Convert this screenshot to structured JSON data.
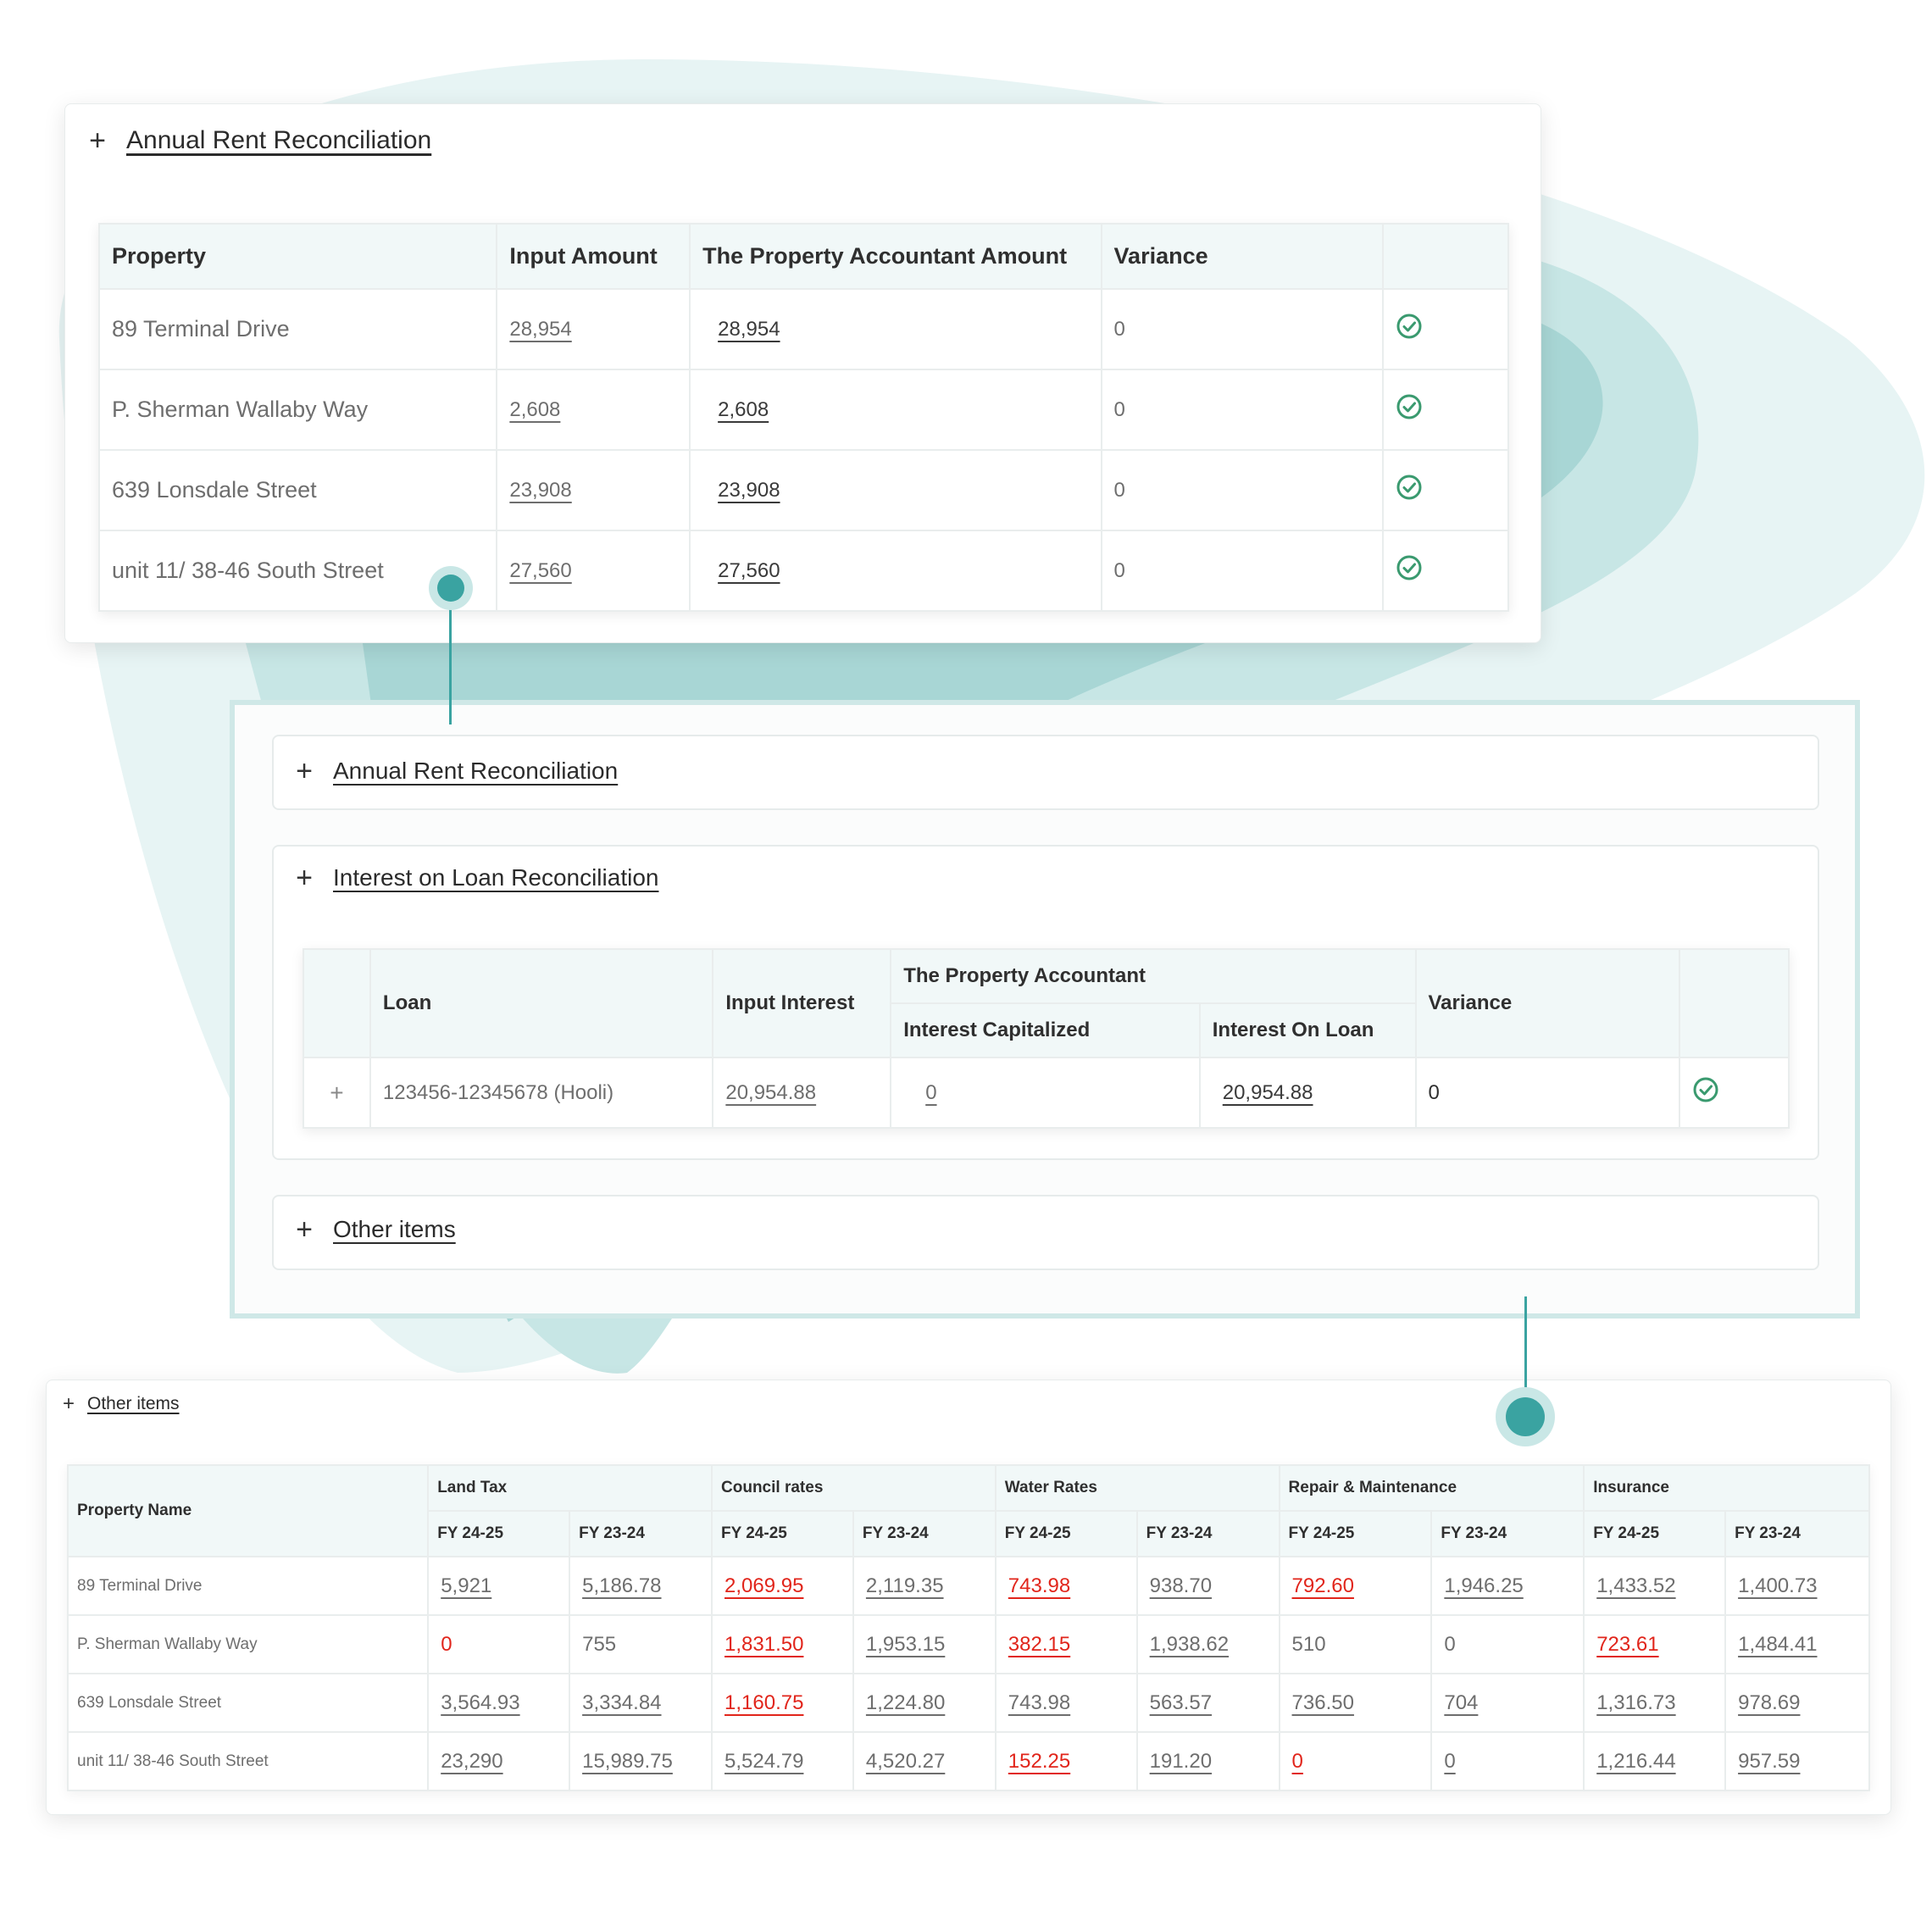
{
  "colors": {
    "accent": "#3aa3a1",
    "negative": "#e1251b",
    "check": "#3a9a6f",
    "header_bg": "#f1f8f8"
  },
  "rent_card": {
    "title": "Annual Rent Reconciliation",
    "toggle_icon": "plus-icon",
    "headers": [
      "Property",
      "Input Amount",
      "The Property Accountant Amount",
      "Variance",
      ""
    ],
    "rows": [
      {
        "property": "89 Terminal Drive",
        "input": "28,954",
        "tpa": "28,954",
        "variance": "0",
        "status_icon": "check-circle-icon"
      },
      {
        "property": "P. Sherman Wallaby Way",
        "input": "2,608",
        "tpa": "2,608",
        "variance": "0",
        "status_icon": "check-circle-icon"
      },
      {
        "property": "639 Lonsdale Street",
        "input": "23,908",
        "tpa": "23,908",
        "variance": "0",
        "status_icon": "check-circle-icon"
      },
      {
        "property": "unit 11/ 38-46 South Street",
        "input": "27,560",
        "tpa": "27,560",
        "variance": "0",
        "status_icon": "check-circle-icon"
      }
    ]
  },
  "main_card": {
    "rent_title": "Annual Rent Reconciliation",
    "loan_title": "Interest on Loan Reconciliation",
    "other_title": "Other items",
    "loan_table": {
      "headers": {
        "loan": "Loan",
        "input_interest": "Input Interest",
        "tpa_group": "The Property Accountant",
        "interest_capitalized": "Interest Capitalized",
        "interest_on_loan": "Interest On Loan",
        "variance": "Variance"
      },
      "row": {
        "expand": "+",
        "loan": "123456-12345678 (Hooli)",
        "input_interest": "20,954.88",
        "interest_capitalized": "0",
        "interest_on_loan": "20,954.88",
        "variance": "0",
        "status_icon": "check-circle-icon"
      }
    }
  },
  "other_card": {
    "title": "Other items",
    "property_header": "Property Name",
    "groups": [
      "Land Tax",
      "Council rates",
      "Water Rates",
      "Repair & Maintenance",
      "Insurance"
    ],
    "sub_headers": [
      "FY 24-25",
      "FY 23-24"
    ],
    "rows": [
      {
        "name": "89 Terminal Drive",
        "cells": [
          [
            "5,921",
            "u"
          ],
          [
            "5,186.78",
            "u"
          ],
          [
            "2,069.95",
            "ur"
          ],
          [
            "2,119.35",
            "u"
          ],
          [
            "743.98",
            "ur"
          ],
          [
            "938.70",
            "u"
          ],
          [
            "792.60",
            "ur"
          ],
          [
            "1,946.25",
            "u"
          ],
          [
            "1,433.52",
            "u"
          ],
          [
            "1,400.73",
            "u"
          ]
        ]
      },
      {
        "name": "P. Sherman Wallaby Way",
        "cells": [
          [
            "0",
            "r"
          ],
          [
            "755",
            ""
          ],
          [
            "1,831.50",
            "ur"
          ],
          [
            "1,953.15",
            "u"
          ],
          [
            "382.15",
            "ur"
          ],
          [
            "1,938.62",
            "u"
          ],
          [
            "510",
            ""
          ],
          [
            "0",
            ""
          ],
          [
            "723.61",
            "ur"
          ],
          [
            "1,484.41",
            "u"
          ]
        ]
      },
      {
        "name": "639 Lonsdale Street",
        "cells": [
          [
            "3,564.93",
            "u"
          ],
          [
            "3,334.84",
            "u"
          ],
          [
            "1,160.75",
            "ur"
          ],
          [
            "1,224.80",
            "u"
          ],
          [
            "743.98",
            "u"
          ],
          [
            "563.57",
            "u"
          ],
          [
            "736.50",
            "u"
          ],
          [
            "704",
            "u"
          ],
          [
            "1,316.73",
            "u"
          ],
          [
            "978.69",
            "u"
          ]
        ]
      },
      {
        "name": "unit 11/ 38-46 South Street",
        "cells": [
          [
            "23,290",
            "u"
          ],
          [
            "15,989.75",
            "u"
          ],
          [
            "5,524.79",
            "u"
          ],
          [
            "4,520.27",
            "u"
          ],
          [
            "152.25",
            "ur"
          ],
          [
            "191.20",
            "u"
          ],
          [
            "0",
            "ur"
          ],
          [
            "0",
            "u"
          ],
          [
            "1,216.44",
            "u"
          ],
          [
            "957.59",
            "u"
          ]
        ]
      }
    ]
  }
}
